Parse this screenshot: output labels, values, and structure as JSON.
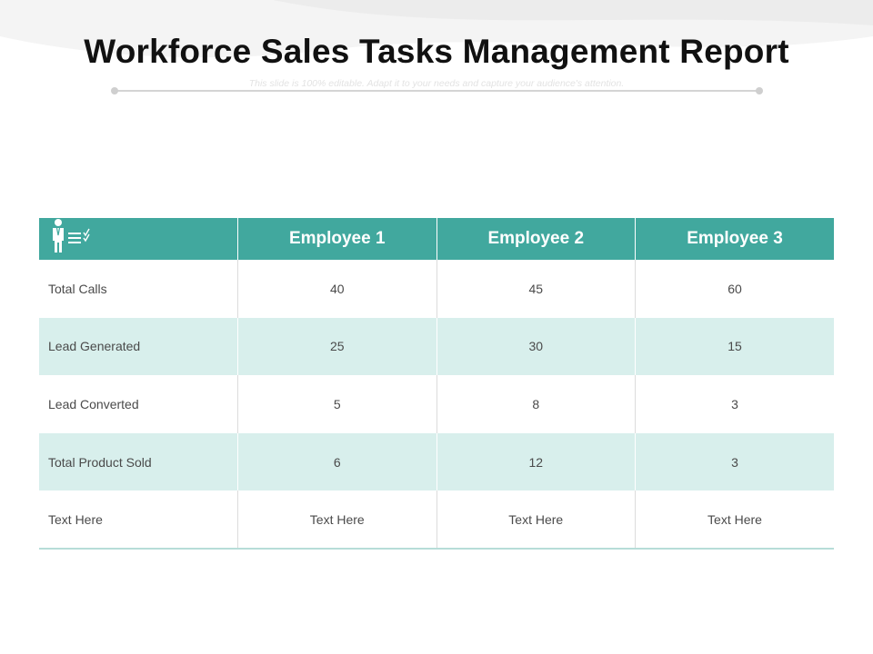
{
  "header": {
    "title": "Workforce Sales Tasks Management Report",
    "subtitle": "This slide is 100% editable. Adapt it to your needs and capture your audience's attention."
  },
  "table": {
    "header_icon": "employee-checklist-icon",
    "columns": [
      "Employee 1",
      "Employee 2",
      "Employee 3"
    ],
    "rows": [
      {
        "label": "Total Calls",
        "values": [
          "40",
          "45",
          "60"
        ]
      },
      {
        "label": "Lead Generated",
        "values": [
          "25",
          "30",
          "15"
        ]
      },
      {
        "label": "Lead Converted",
        "values": [
          "5",
          "8",
          "3"
        ]
      },
      {
        "label": "Total Product Sold",
        "values": [
          "6",
          "12",
          "3"
        ]
      },
      {
        "label": "Text Here",
        "values": [
          "Text Here",
          "Text Here",
          "Text Here"
        ]
      }
    ]
  },
  "colors": {
    "header_bg": "#41a89e",
    "alt_row_bg": "#d8efec",
    "title_text": "#111111"
  }
}
